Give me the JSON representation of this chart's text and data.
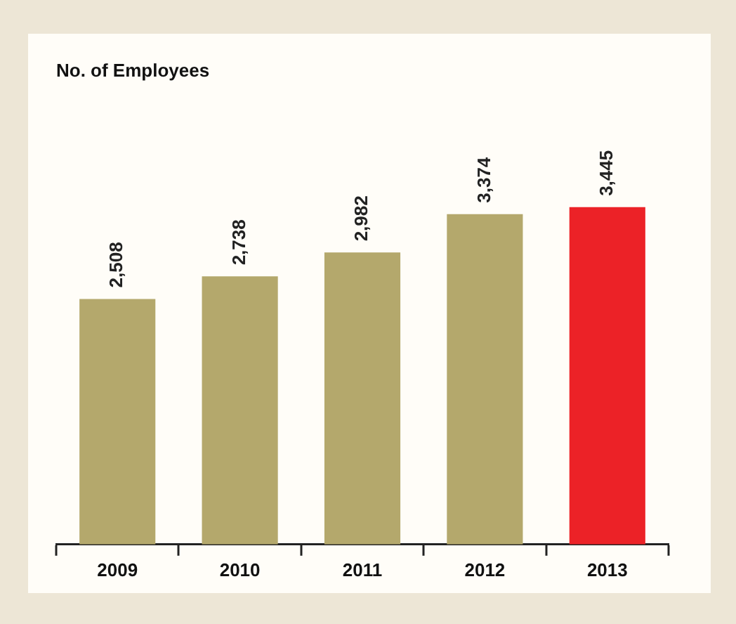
{
  "chart_data": {
    "type": "bar",
    "title": "No. of Employees",
    "categories": [
      "2009",
      "2010",
      "2011",
      "2012",
      "2013"
    ],
    "values": [
      2508,
      2738,
      2982,
      3374,
      3445
    ],
    "colors": [
      "#b4a86c",
      "#b4a86c",
      "#b4a86c",
      "#b4a86c",
      "#ec2227"
    ],
    "data_labels": true,
    "value_labels": [
      "2,508",
      "2,738",
      "2,982",
      "3,374",
      "3,445"
    ],
    "grid": false,
    "legend": false
  }
}
